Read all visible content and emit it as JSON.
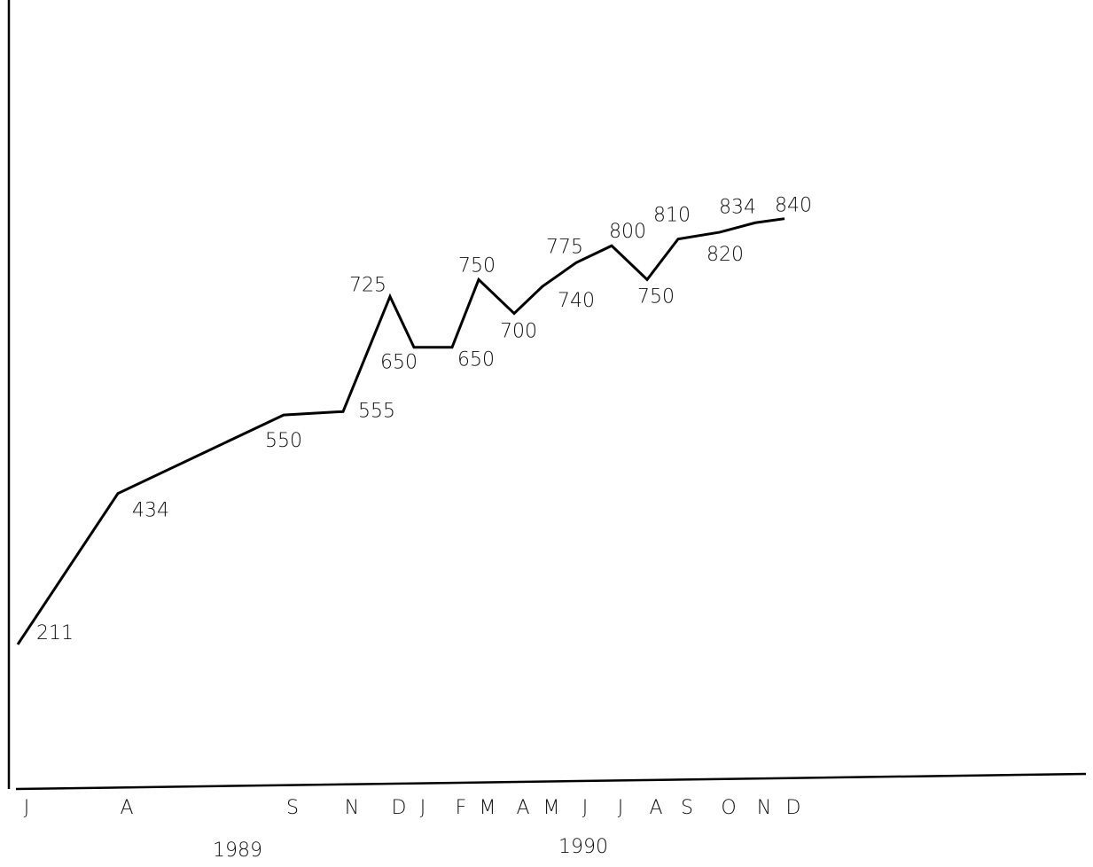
{
  "chart_data": {
    "type": "line",
    "categories": [
      "J",
      "A",
      "S",
      "N",
      "D",
      "J",
      "F",
      "M",
      "A",
      "M",
      "J",
      "J",
      "A",
      "S",
      "O",
      "N",
      "D"
    ],
    "values": [
      211,
      434,
      550,
      555,
      725,
      650,
      650,
      750,
      700,
      740,
      775,
      800,
      750,
      810,
      820,
      834,
      840
    ],
    "color": "#000000",
    "ylim": [
      0,
      1150
    ],
    "annotations": [
      "1989",
      "1990"
    ]
  }
}
